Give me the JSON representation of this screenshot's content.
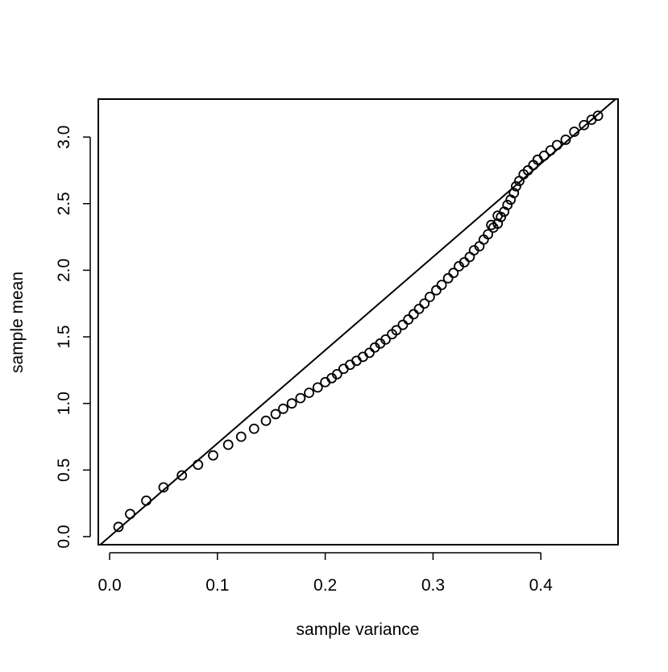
{
  "chart_data": {
    "type": "scatter",
    "x_label": "sample variance",
    "y_label": "sample mean",
    "xlim": [
      -0.0105,
      0.4716
    ],
    "ylim": [
      -0.0605,
      3.285
    ],
    "xticks": [
      {
        "value": 0,
        "label": "0.0"
      },
      0.1,
      0.2,
      0.3,
      0.4
    ],
    "yticks": [
      {
        "value": 0,
        "label": "0.0"
      },
      0.5,
      {
        "value": 1,
        "label": "1.0"
      },
      1.5,
      {
        "value": 2,
        "label": "2.0"
      },
      2.5,
      {
        "value": 3,
        "label": "3.0"
      }
    ],
    "reference_line": {
      "intercept": 0,
      "slope": 7
    },
    "color": "#000000",
    "x": [
      0.0082,
      0.019,
      0.034,
      0.05,
      0.067,
      0.082,
      0.096,
      0.11,
      0.122,
      0.134,
      0.145,
      0.154,
      0.161,
      0.169,
      0.177,
      0.185,
      0.193,
      0.2,
      0.206,
      0.211,
      0.217,
      0.223,
      0.229,
      0.235,
      0.241,
      0.246,
      0.251,
      0.256,
      0.262,
      0.266,
      0.272,
      0.277,
      0.282,
      0.287,
      0.292,
      0.297,
      0.303,
      0.308,
      0.314,
      0.319,
      0.324,
      0.329,
      0.334,
      0.338,
      0.343,
      0.347,
      0.351,
      0.354,
      0.356,
      0.36,
      0.36,
      0.363,
      0.366,
      0.369,
      0.372,
      0.375,
      0.377,
      0.38,
      0.384,
      0.388,
      0.393,
      0.397,
      0.403,
      0.409,
      0.415,
      0.423,
      0.431,
      0.44,
      0.447,
      0.453
    ],
    "y": [
      0.073,
      0.17,
      0.27,
      0.37,
      0.46,
      0.54,
      0.61,
      0.69,
      0.75,
      0.81,
      0.87,
      0.92,
      0.96,
      1.0,
      1.04,
      1.08,
      1.12,
      1.16,
      1.19,
      1.22,
      1.26,
      1.29,
      1.32,
      1.35,
      1.38,
      1.42,
      1.45,
      1.48,
      1.52,
      1.55,
      1.59,
      1.63,
      1.67,
      1.71,
      1.75,
      1.8,
      1.85,
      1.89,
      1.94,
      1.98,
      2.03,
      2.06,
      2.1,
      2.15,
      2.18,
      2.23,
      2.27,
      2.34,
      2.32,
      2.35,
      2.41,
      2.4,
      2.44,
      2.49,
      2.53,
      2.58,
      2.63,
      2.67,
      2.72,
      2.75,
      2.79,
      2.83,
      2.86,
      2.9,
      2.94,
      2.98,
      3.04,
      3.09,
      3.13,
      3.16
    ]
  }
}
